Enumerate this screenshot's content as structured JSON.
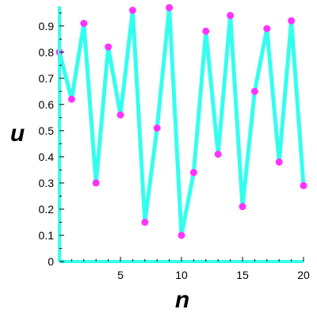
{
  "chart_data": {
    "type": "line",
    "xlabel": "n",
    "ylabel": "u",
    "xlim": [
      0,
      20
    ],
    "ylim": [
      0,
      1.0
    ],
    "x_ticks": [
      5,
      10,
      15,
      20
    ],
    "y_ticks": [
      0,
      0.1,
      0.2,
      0.3,
      0.4,
      0.5,
      0.6,
      0.7,
      0.8,
      0.9
    ],
    "grid": false,
    "series": [
      {
        "x": [
          0,
          1,
          2,
          3,
          4,
          5,
          6,
          7,
          8,
          9,
          10,
          11,
          12,
          13,
          14,
          15,
          16,
          17,
          18,
          19,
          20
        ],
        "values": [
          0.8,
          0.62,
          0.91,
          0.3,
          0.82,
          0.56,
          0.96,
          0.15,
          0.51,
          0.97,
          0.1,
          0.34,
          0.88,
          0.41,
          0.94,
          0.21,
          0.65,
          0.89,
          0.38,
          0.92,
          0.29
        ],
        "line_color": "#33ffee",
        "marker_color": "#ff33ff"
      }
    ]
  }
}
